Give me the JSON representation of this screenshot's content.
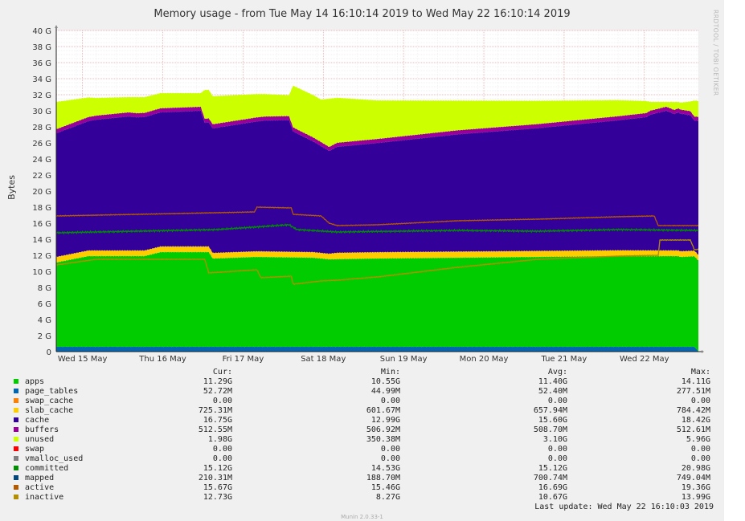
{
  "title": "Memory usage - from Tue May 14 16:10:14 2019 to Wed May 22 16:10:14 2019",
  "side_label": "RRDTOOL / TOBI OETIKER",
  "footer": "Munin 2.0.33-1",
  "last_update": "Last update: Wed May 22 16:10:03 2019",
  "legend_headers": {
    "cur": "Cur:",
    "min": "Min:",
    "avg": "Avg:",
    "max": "Max:"
  },
  "legend": [
    {
      "name": "apps",
      "color": "#00cc00",
      "cur": "11.29G",
      "min": "10.55G",
      "avg": "11.40G",
      "max": "14.11G"
    },
    {
      "name": "page_tables",
      "color": "#0066b3",
      "cur": "52.72M",
      "min": "44.99M",
      "avg": "52.40M",
      "max": "277.51M"
    },
    {
      "name": "swap_cache",
      "color": "#ff8000",
      "cur": "0.00",
      "min": "0.00",
      "avg": "0.00",
      "max": "0.00"
    },
    {
      "name": "slab_cache",
      "color": "#ffcc00",
      "cur": "725.31M",
      "min": "601.67M",
      "avg": "657.94M",
      "max": "784.42M"
    },
    {
      "name": "cache",
      "color": "#330099",
      "cur": "16.75G",
      "min": "12.99G",
      "avg": "15.60G",
      "max": "18.42G"
    },
    {
      "name": "buffers",
      "color": "#990099",
      "cur": "512.55M",
      "min": "506.92M",
      "avg": "508.70M",
      "max": "512.61M"
    },
    {
      "name": "unused",
      "color": "#ccff00",
      "cur": "1.98G",
      "min": "350.38M",
      "avg": "3.10G",
      "max": "5.96G"
    },
    {
      "name": "swap",
      "color": "#ff0000",
      "cur": "0.00",
      "min": "0.00",
      "avg": "0.00",
      "max": "0.00"
    },
    {
      "name": "vmalloc_used",
      "color": "#808080",
      "cur": "0.00",
      "min": "0.00",
      "avg": "0.00",
      "max": "0.00"
    },
    {
      "name": "committed",
      "color": "#008f00",
      "cur": "15.12G",
      "min": "14.53G",
      "avg": "15.12G",
      "max": "20.98G"
    },
    {
      "name": "mapped",
      "color": "#00487d",
      "cur": "210.31M",
      "min": "188.70M",
      "avg": "700.74M",
      "max": "749.04M"
    },
    {
      "name": "active",
      "color": "#b35a00",
      "cur": "15.67G",
      "min": "15.46G",
      "avg": "16.69G",
      "max": "19.36G"
    },
    {
      "name": "inactive",
      "color": "#b38f00",
      "cur": "12.73G",
      "min": "8.27G",
      "avg": "10.67G",
      "max": "13.99G"
    }
  ],
  "chart_data": {
    "type": "area",
    "ylabel": "Bytes",
    "ylim": [
      0,
      40
    ],
    "y_unit": "G",
    "y_ticks": [
      "0",
      "2 G",
      "4 G",
      "6 G",
      "8 G",
      "10 G",
      "12 G",
      "14 G",
      "16 G",
      "18 G",
      "20 G",
      "22 G",
      "24 G",
      "26 G",
      "28 G",
      "30 G",
      "32 G",
      "34 G",
      "36 G",
      "38 G",
      "40 G"
    ],
    "x_ticks": [
      "Wed 15 May",
      "Thu 16 May",
      "Fri 17 May",
      "Sat 18 May",
      "Sun 19 May",
      "Mon 20 May",
      "Tue 21 May",
      "Wed 22 May"
    ],
    "x_range_days": [
      0,
      8
    ],
    "x_tick_days": [
      0.327,
      1.327,
      2.327,
      3.327,
      4.327,
      5.327,
      6.327,
      7.327
    ],
    "stack_order": [
      "page_tables",
      "apps",
      "slab_cache",
      "cache",
      "buffers",
      "unused"
    ],
    "grid": true,
    "series": [
      {
        "name": "apps",
        "color": "#00cc00",
        "points": [
          [
            0,
            10.5
          ],
          [
            0.4,
            11.3
          ],
          [
            1.1,
            11.3
          ],
          [
            1.3,
            11.8
          ],
          [
            1.9,
            11.8
          ],
          [
            1.95,
            11.0
          ],
          [
            2.5,
            11.2
          ],
          [
            3.2,
            11.1
          ],
          [
            3.4,
            10.9
          ],
          [
            4.0,
            11.0
          ],
          [
            5.0,
            11.1
          ],
          [
            6.0,
            11.2
          ],
          [
            7.0,
            11.3
          ],
          [
            7.75,
            11.3
          ],
          [
            7.78,
            11.2
          ],
          [
            8.0,
            11.3
          ]
        ]
      },
      {
        "name": "page_tables",
        "color": "#0066b3",
        "points": [
          [
            0,
            0.6
          ],
          [
            7.95,
            0.6
          ],
          [
            8.0,
            0.05
          ]
        ]
      },
      {
        "name": "slab_cache",
        "color": "#ffcc00",
        "points": [
          [
            0,
            0.7
          ],
          [
            3.4,
            0.7
          ],
          [
            3.5,
            0.8
          ],
          [
            8.0,
            0.7
          ]
        ]
      },
      {
        "name": "cache",
        "color": "#330099",
        "points": [
          [
            0,
            15.4
          ],
          [
            0.5,
            16.3
          ],
          [
            0.9,
            16.7
          ],
          [
            1.0,
            16.6
          ],
          [
            1.8,
            16.9
          ],
          [
            1.85,
            15.4
          ],
          [
            2.6,
            16.3
          ],
          [
            2.9,
            16.4
          ],
          [
            2.95,
            15.0
          ],
          [
            3.3,
            13.3
          ],
          [
            3.4,
            12.8
          ],
          [
            3.5,
            13.2
          ],
          [
            4.0,
            13.6
          ],
          [
            5.0,
            14.6
          ],
          [
            6.0,
            15.3
          ],
          [
            7.0,
            16.2
          ],
          [
            7.35,
            16.6
          ],
          [
            7.4,
            16.9
          ],
          [
            7.6,
            17.4
          ],
          [
            7.7,
            17.0
          ],
          [
            7.75,
            17.2
          ],
          [
            7.9,
            16.9
          ],
          [
            7.95,
            16.2
          ],
          [
            8.0,
            16.7
          ]
        ]
      },
      {
        "name": "buffers",
        "color": "#990099",
        "points": [
          [
            0,
            0.5
          ],
          [
            8.0,
            0.5
          ]
        ]
      },
      {
        "name": "unused",
        "color": "#ccff00",
        "points": [
          [
            0,
            3.4
          ],
          [
            0.5,
            2.2
          ],
          [
            0.9,
            1.9
          ],
          [
            1.0,
            2.0
          ],
          [
            1.8,
            1.7
          ],
          [
            1.85,
            3.6
          ],
          [
            2.6,
            2.8
          ],
          [
            2.9,
            2.6
          ],
          [
            2.95,
            5.2
          ],
          [
            3.3,
            5.3
          ],
          [
            3.4,
            6.0
          ],
          [
            3.5,
            5.6
          ],
          [
            4.0,
            4.8
          ],
          [
            5.0,
            3.7
          ],
          [
            6.0,
            2.9
          ],
          [
            7.0,
            2.0
          ],
          [
            7.35,
            1.5
          ],
          [
            7.4,
            1.1
          ],
          [
            7.6,
            0.6
          ],
          [
            7.7,
            1.0
          ],
          [
            7.75,
            0.8
          ],
          [
            7.9,
            1.2
          ],
          [
            7.95,
            2.0
          ],
          [
            8.0,
            1.98
          ]
        ]
      },
      {
        "name": "committed",
        "color": "#008f00",
        "points": [
          [
            0,
            14.8
          ],
          [
            1.0,
            15.0
          ],
          [
            2.0,
            15.2
          ],
          [
            2.9,
            15.8
          ],
          [
            3.0,
            15.2
          ],
          [
            3.5,
            14.9
          ],
          [
            5.0,
            15.1
          ],
          [
            6.0,
            15.0
          ],
          [
            7.0,
            15.2
          ],
          [
            8.0,
            15.1
          ]
        ]
      },
      {
        "name": "active",
        "color": "#b35a00",
        "points": [
          [
            0,
            16.9
          ],
          [
            1.0,
            17.1
          ],
          [
            2.0,
            17.3
          ],
          [
            2.47,
            17.4
          ],
          [
            2.5,
            18.0
          ],
          [
            2.93,
            17.9
          ],
          [
            2.95,
            17.1
          ],
          [
            3.3,
            16.9
          ],
          [
            3.4,
            16.0
          ],
          [
            3.5,
            15.7
          ],
          [
            4.0,
            15.8
          ],
          [
            5.0,
            16.3
          ],
          [
            6.0,
            16.5
          ],
          [
            7.0,
            16.8
          ],
          [
            7.45,
            16.9
          ],
          [
            7.5,
            15.7
          ],
          [
            8.0,
            15.7
          ]
        ]
      },
      {
        "name": "inactive",
        "color": "#b38f00",
        "points": [
          [
            0,
            10.8
          ],
          [
            0.5,
            11.5
          ],
          [
            1.85,
            11.5
          ],
          [
            1.9,
            9.8
          ],
          [
            2.5,
            10.2
          ],
          [
            2.55,
            9.2
          ],
          [
            2.93,
            9.4
          ],
          [
            2.95,
            8.4
          ],
          [
            3.3,
            8.8
          ],
          [
            3.5,
            8.9
          ],
          [
            4.0,
            9.3
          ],
          [
            5.0,
            10.5
          ],
          [
            6.0,
            11.5
          ],
          [
            7.0,
            11.9
          ],
          [
            7.5,
            12.0
          ],
          [
            7.52,
            13.9
          ],
          [
            7.9,
            13.9
          ],
          [
            7.95,
            12.7
          ],
          [
            8.0,
            12.73
          ]
        ]
      }
    ]
  }
}
